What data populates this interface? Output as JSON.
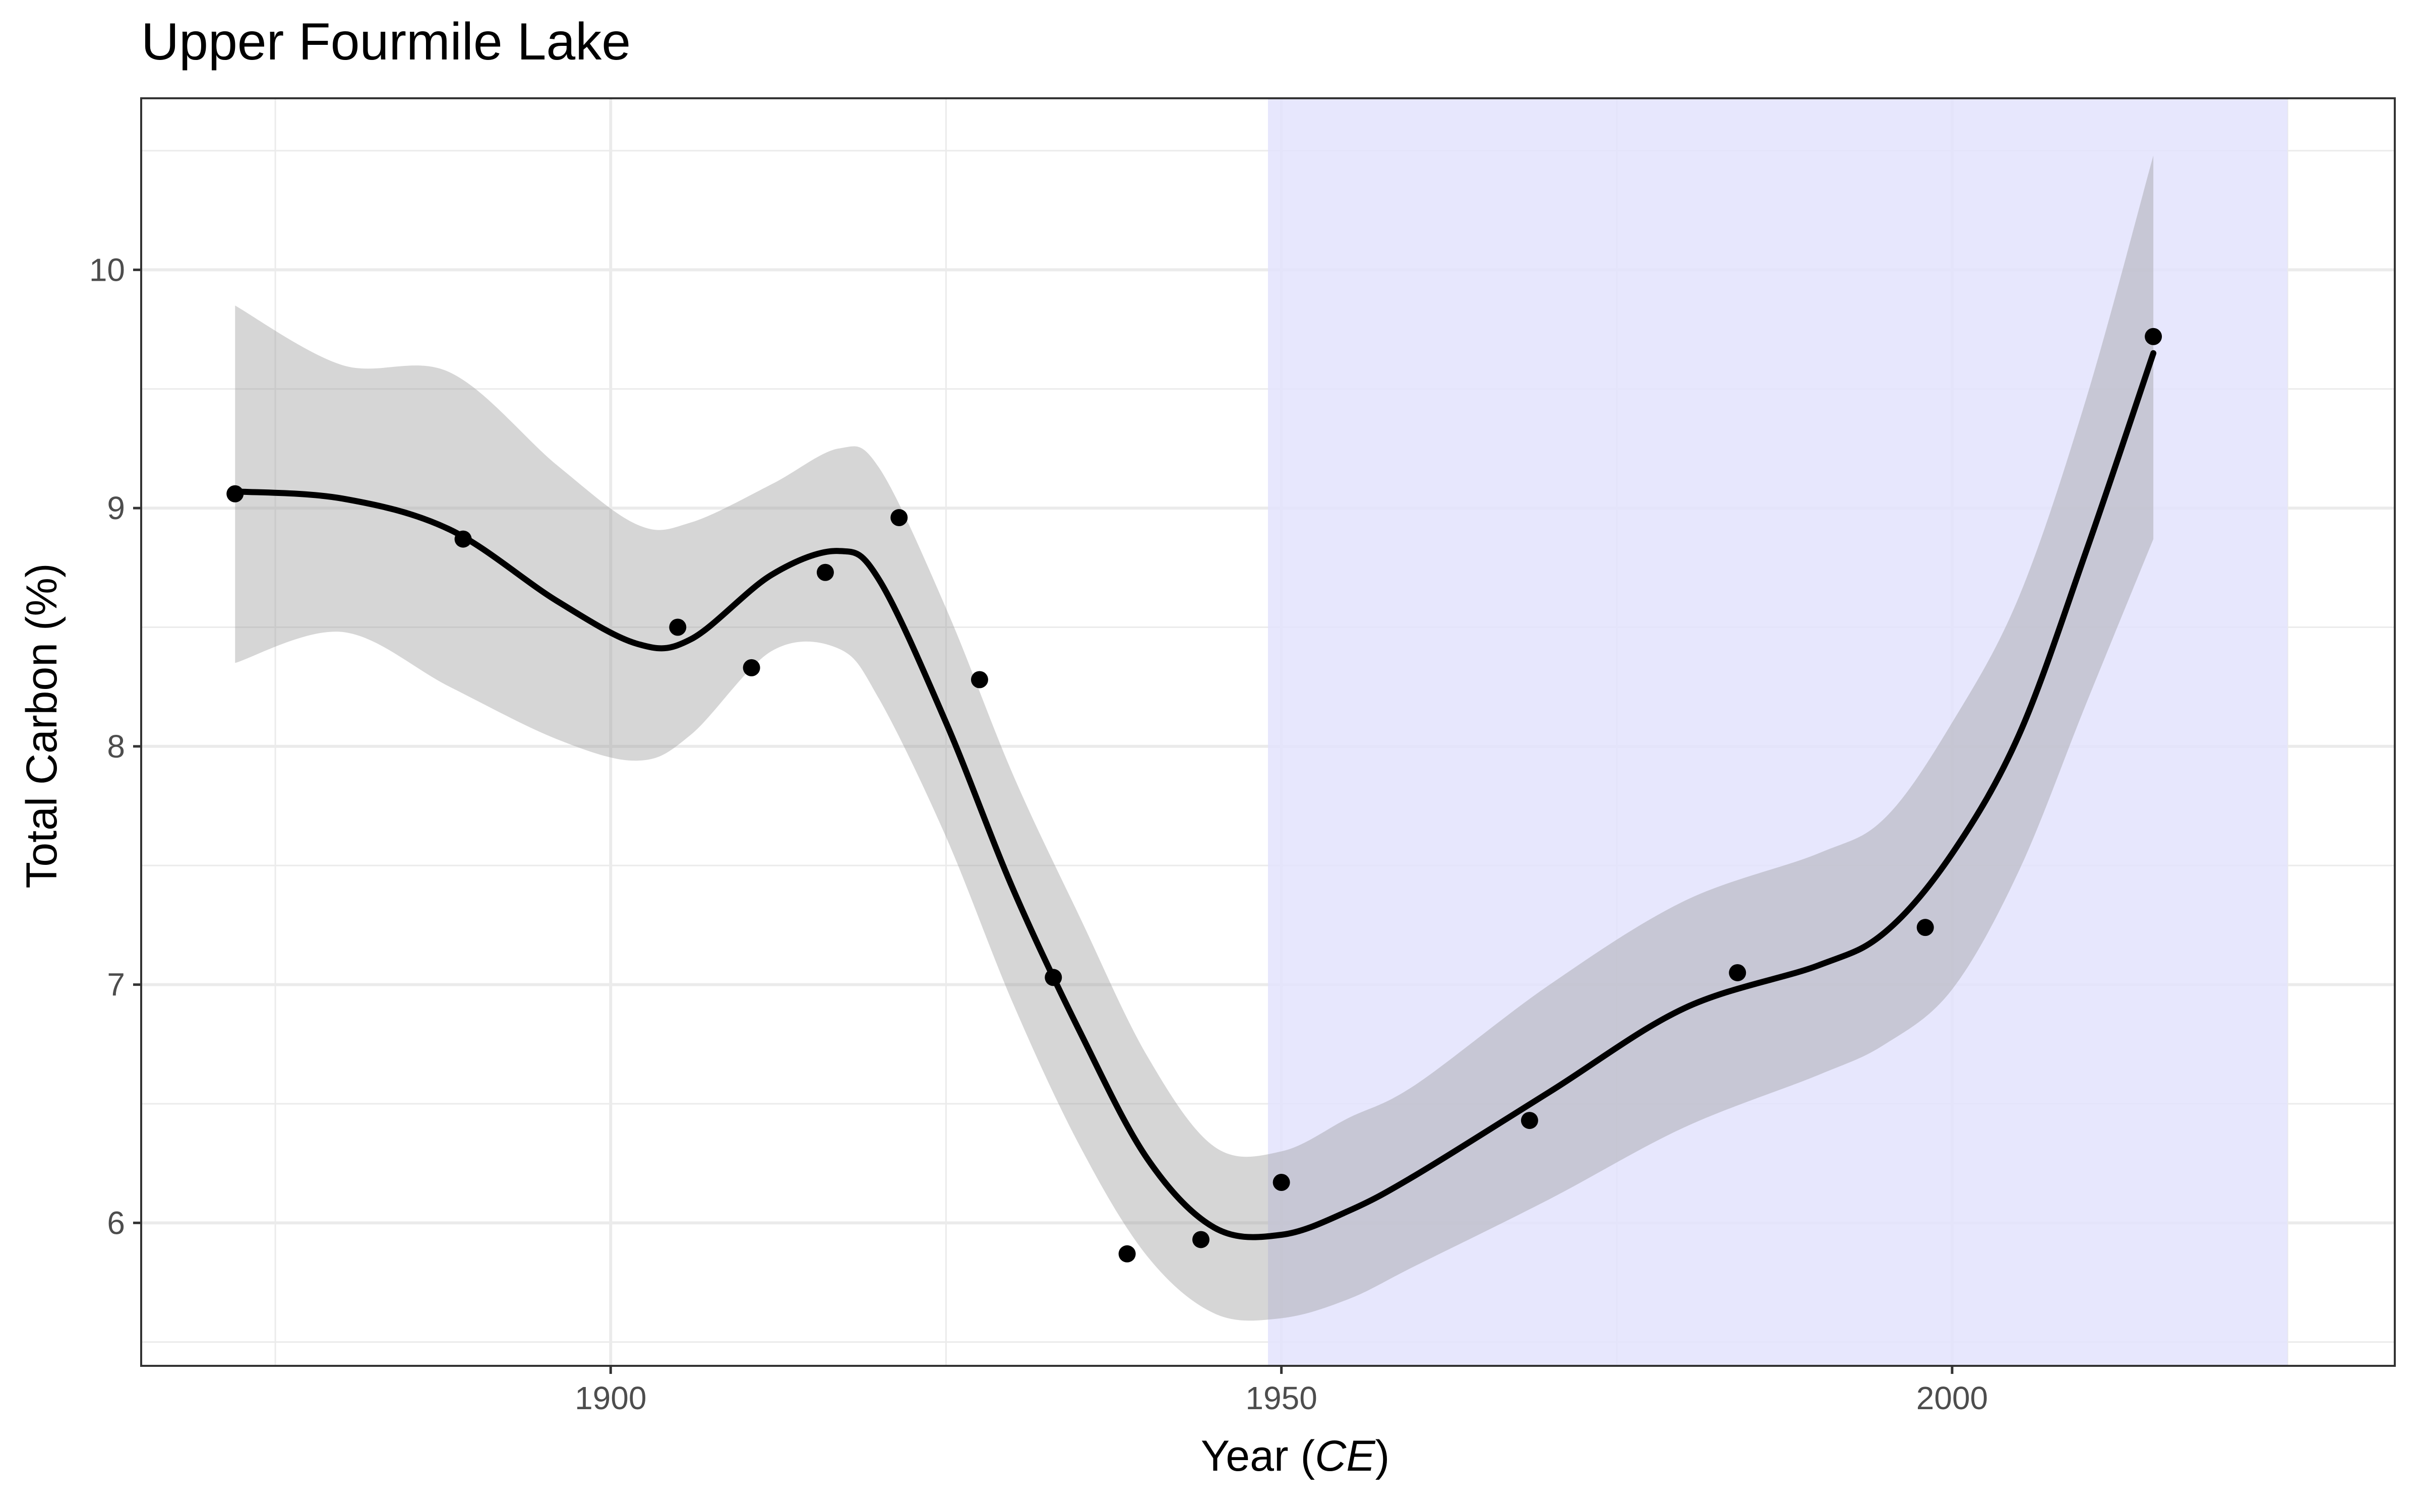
{
  "chart_data": {
    "type": "scatter",
    "title": "Upper Fourmile Lake",
    "xlabel": {
      "prefix": "Year (",
      "italic": "CE",
      "suffix": ")"
    },
    "ylabel": "Total Carbon (%)",
    "xlim": [
      1865,
      2033
    ],
    "ylim": [
      5.4,
      10.72
    ],
    "x_ticks": [
      1900,
      1950,
      2000
    ],
    "y_ticks": [
      6,
      7,
      8,
      9,
      10
    ],
    "grid": true,
    "shaded_region": {
      "x": [
        1949,
        2025
      ],
      "color": "#e3e3fd"
    },
    "points": [
      {
        "x": 1872,
        "y": 9.06
      },
      {
        "x": 1889,
        "y": 8.87
      },
      {
        "x": 1905,
        "y": 8.5
      },
      {
        "x": 1910.5,
        "y": 8.33
      },
      {
        "x": 1916,
        "y": 8.73
      },
      {
        "x": 1921.5,
        "y": 8.96
      },
      {
        "x": 1927.5,
        "y": 8.28
      },
      {
        "x": 1933,
        "y": 7.03
      },
      {
        "x": 1938.5,
        "y": 5.87
      },
      {
        "x": 1944,
        "y": 5.93
      },
      {
        "x": 1950,
        "y": 6.17
      },
      {
        "x": 1968.5,
        "y": 6.43
      },
      {
        "x": 1984,
        "y": 7.05
      },
      {
        "x": 1998,
        "y": 7.24
      },
      {
        "x": 2015,
        "y": 9.72
      }
    ],
    "smooth_fit": {
      "x": [
        1872,
        1880,
        1888,
        1896,
        1902,
        1906,
        1912,
        1917,
        1920,
        1925,
        1930,
        1935,
        1940,
        1945,
        1950,
        1955,
        1960,
        1970,
        1980,
        1990,
        1995,
        2000,
        2005,
        2010,
        2015
      ],
      "y": [
        9.07,
        9.04,
        8.91,
        8.61,
        8.43,
        8.45,
        8.72,
        8.82,
        8.7,
        8.1,
        7.4,
        6.8,
        6.27,
        5.98,
        5.95,
        6.05,
        6.2,
        6.55,
        6.9,
        7.08,
        7.22,
        7.55,
        8.05,
        8.82,
        9.65
      ],
      "lower": [
        8.35,
        8.48,
        8.25,
        8.03,
        7.94,
        8.05,
        8.4,
        8.41,
        8.2,
        7.62,
        6.92,
        6.32,
        5.86,
        5.62,
        5.6,
        5.68,
        5.82,
        6.1,
        6.4,
        6.62,
        6.75,
        6.98,
        7.48,
        8.18,
        8.87
      ],
      "upper": [
        9.85,
        9.6,
        9.57,
        9.18,
        8.93,
        8.94,
        9.1,
        9.25,
        9.17,
        8.58,
        7.88,
        7.28,
        6.7,
        6.32,
        6.3,
        6.44,
        6.58,
        7.0,
        7.35,
        7.55,
        7.7,
        8.1,
        8.63,
        9.46,
        10.48
      ]
    }
  },
  "colors": {
    "background": "#ffffff",
    "grid": "#ebebeb",
    "confidence_band": "#999999",
    "shaded_region": "#e3e3fd",
    "line": "#000000",
    "points": "#000000"
  }
}
